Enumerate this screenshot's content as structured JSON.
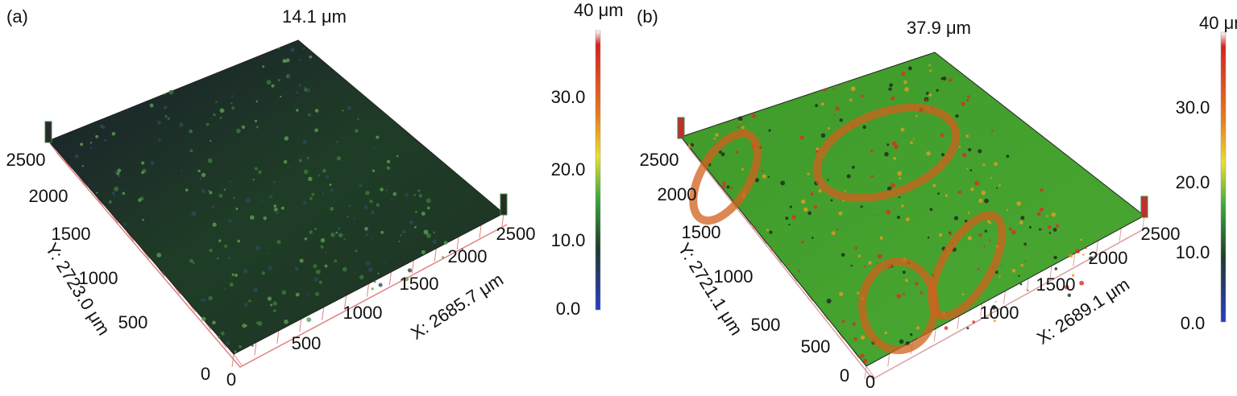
{
  "panels": [
    {
      "label": "(a)",
      "peak": "14.1 μm",
      "colorbar": {
        "title": "40 μm",
        "ticks": [
          "30.0",
          "20.0",
          "10.0",
          "0.0"
        ]
      },
      "y_axis": {
        "title": "Y: 2723.0 μm",
        "ticks": [
          "0",
          "500",
          "1000",
          "1500",
          "2000",
          "2500"
        ]
      },
      "x_axis": {
        "title": "X: 2685.7 μm",
        "ticks": [
          "0",
          "500",
          "1000",
          "1500",
          "2000",
          "2500"
        ]
      }
    },
    {
      "label": "(b)",
      "peak": "37.9 μm",
      "colorbar": {
        "title": "40 μm",
        "ticks": [
          "30.0",
          "20.0",
          "10.0",
          "0.0"
        ]
      },
      "y_axis": {
        "title": "Y: 2721.1 μm",
        "ticks": [
          "0",
          "500",
          "1000",
          "1500",
          "2000",
          "2500"
        ]
      },
      "x_axis": {
        "title": "X: 2689.1 μm",
        "ticks": [
          "0",
          "500",
          "1000",
          "1500",
          "2000",
          "2500"
        ]
      }
    }
  ]
}
